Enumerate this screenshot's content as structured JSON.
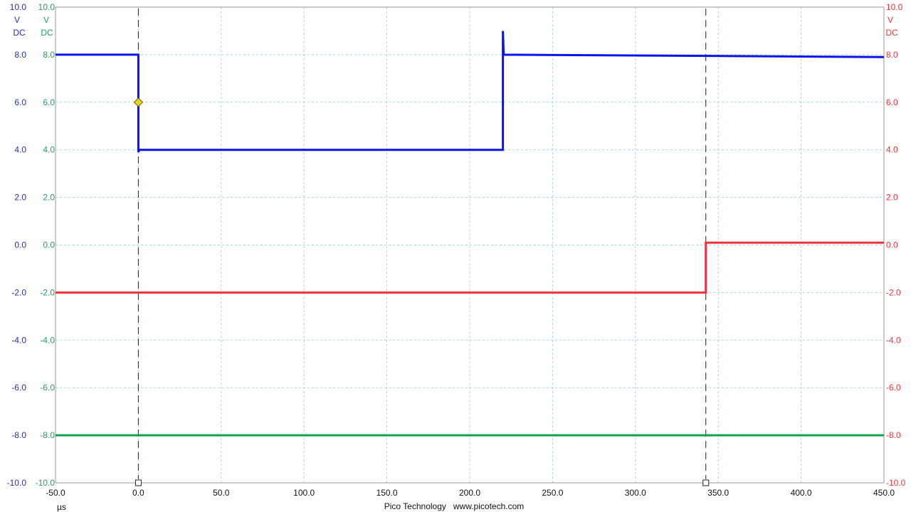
{
  "chart_data": {
    "type": "line",
    "x_unit": "µs",
    "xlim": [
      -50,
      450
    ],
    "x_ticks": [
      "-50.0",
      "0.0",
      "50.0",
      "100.0",
      "150.0",
      "200.0",
      "250.0",
      "300.0",
      "350.0",
      "400.0",
      "450.0"
    ],
    "ylim": [
      -10,
      10
    ],
    "y_ticks": [
      "10.0",
      "8.0",
      "6.0",
      "4.0",
      "2.0",
      "0.0",
      "-2.0",
      "-4.0",
      "-6.0",
      "-8.0",
      "-10.0"
    ],
    "grid": true,
    "axes": [
      {
        "id": "blue-axis",
        "side": "left",
        "color": "#1f2fd2",
        "unit": "V",
        "coupling": "DC"
      },
      {
        "id": "green-axis",
        "side": "left",
        "color": "#1aa35a",
        "unit": "V",
        "coupling": "DC"
      },
      {
        "id": "red-axis",
        "side": "right",
        "color": "#f0323c",
        "unit": "V",
        "coupling": "DC"
      }
    ],
    "series": [
      {
        "id": "blue-trace",
        "color": "#0a14f0",
        "points": [
          [
            -50,
            8.0
          ],
          [
            0.0,
            8.0
          ],
          [
            0.0,
            6.0
          ],
          [
            0.0,
            3.9
          ],
          [
            0.5,
            4.0
          ],
          [
            220.0,
            4.0
          ],
          [
            220.0,
            9.0
          ],
          [
            220.5,
            8.0
          ],
          [
            450,
            7.9
          ]
        ]
      },
      {
        "id": "red-trace",
        "color": "#f0323c",
        "points": [
          [
            -50,
            -2.0
          ],
          [
            342.5,
            -2.0
          ],
          [
            342.5,
            0.1
          ],
          [
            450,
            0.1
          ]
        ]
      },
      {
        "id": "green-trace",
        "color": "#13a050",
        "points": [
          [
            -50,
            -8.0
          ],
          [
            450,
            -8.0
          ]
        ]
      }
    ],
    "rulers": [
      0.0,
      342.5
    ],
    "trigger_marker": {
      "x": 0.0,
      "y": 6.0,
      "color": "#e8d800"
    }
  },
  "footer": {
    "unit": "µs",
    "brand": "Pico Technology   www.picotech.com"
  }
}
